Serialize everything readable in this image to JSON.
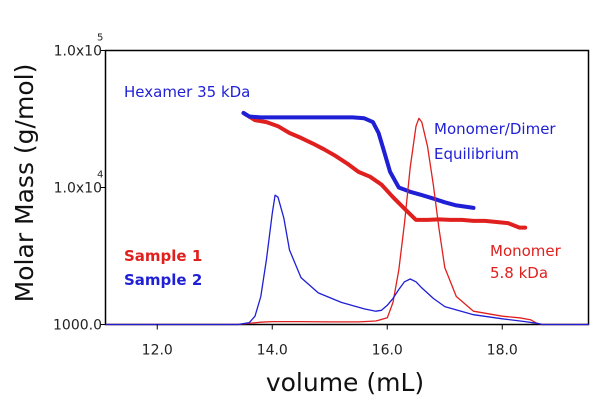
{
  "chart_data": {
    "type": "line",
    "xlabel": "volume (mL)",
    "ylabel": "Molar Mass (g/mol)",
    "xlim": [
      11.1,
      19.5
    ],
    "ylim": [
      1000,
      100000
    ],
    "y_scale": "log",
    "grid": false,
    "x_ticks": [
      {
        "value": 12,
        "label": "12.0"
      },
      {
        "value": 14,
        "label": "14.0"
      },
      {
        "value": 16,
        "label": "16.0"
      },
      {
        "value": 18,
        "label": "18.0"
      }
    ],
    "y_ticks": [
      {
        "value": 1000,
        "base": "1000.0",
        "exp": ""
      },
      {
        "value": 10000,
        "base": "1.0x10",
        "exp": "4"
      },
      {
        "value": 100000,
        "base": "1.0x10",
        "exp": "5"
      }
    ],
    "colors": {
      "sample1": "#e0201e",
      "sample2": "#1f1fd6",
      "axis": "#000000"
    },
    "legend": {
      "placement": "left",
      "entries": [
        {
          "label": "Sample 1",
          "color": "#e0201e"
        },
        {
          "label": "Sample 2",
          "color": "#1f1fd6"
        }
      ]
    },
    "annotations": [
      {
        "lines": [
          "Hexamer 35 kDa"
        ],
        "color": "#1f1fd6"
      },
      {
        "lines": [
          "Monomer/Dimer",
          "Equilibrium"
        ],
        "color": "#1f1fd6"
      },
      {
        "lines": [
          "Monomer",
          "5.8 kDa"
        ],
        "color": "#e0201e"
      }
    ],
    "series": [
      {
        "role": "molar-mass",
        "color": "#e0201e",
        "x": [
          13.5,
          13.7,
          13.9,
          14.1,
          14.3,
          14.5,
          14.7,
          14.9,
          15.1,
          15.3,
          15.5,
          15.7,
          15.9,
          16.1,
          16.3,
          16.5,
          16.7,
          16.9,
          17.1,
          17.3,
          17.5,
          17.7,
          17.9,
          18.1,
          18.3,
          18.4
        ],
        "y": [
          35000,
          31000,
          30000,
          28000,
          25000,
          23000,
          21000,
          19000,
          17000,
          15000,
          13000,
          12000,
          10500,
          8500,
          7000,
          5800,
          5800,
          5850,
          5800,
          5800,
          5700,
          5700,
          5600,
          5500,
          5100,
          5100
        ]
      },
      {
        "role": "molar-mass",
        "color": "#1f1fd6",
        "x": [
          13.5,
          13.6,
          13.8,
          14.0,
          14.2,
          14.6,
          15.0,
          15.4,
          15.6,
          15.75,
          15.85,
          15.95,
          16.05,
          16.2,
          16.4,
          16.6,
          16.8,
          17.0,
          17.2,
          17.4,
          17.5
        ],
        "y": [
          35000,
          33000,
          32500,
          32500,
          32500,
          32500,
          32500,
          32500,
          32000,
          30000,
          25000,
          18000,
          13000,
          10000,
          9300,
          8800,
          8300,
          7800,
          7400,
          7200,
          7100
        ]
      },
      {
        "role": "detector-trace",
        "color": "#e0201e",
        "x": [
          11.1,
          13.4,
          13.8,
          14.0,
          14.5,
          15.0,
          15.5,
          15.8,
          16.0,
          16.1,
          16.2,
          16.3,
          16.4,
          16.5,
          16.55,
          16.6,
          16.7,
          16.8,
          16.9,
          17.0,
          17.2,
          17.5,
          18.0,
          18.3,
          18.5,
          18.6,
          18.7,
          19.5
        ],
        "y": [
          1000,
          1000,
          1040,
          1050,
          1050,
          1045,
          1045,
          1060,
          1120,
          1450,
          2500,
          5500,
          14000,
          28000,
          32000,
          30000,
          20000,
          10500,
          5000,
          2600,
          1600,
          1250,
          1150,
          1120,
          1080,
          1020,
          1000,
          1000
        ]
      },
      {
        "role": "detector-trace",
        "color": "#1f1fd6",
        "x": [
          11.1,
          13.4,
          13.6,
          13.7,
          13.8,
          13.9,
          14.0,
          14.05,
          14.1,
          14.2,
          14.3,
          14.5,
          14.8,
          15.2,
          15.6,
          15.8,
          15.9,
          16.0,
          16.1,
          16.2,
          16.3,
          16.4,
          16.5,
          16.6,
          16.8,
          17.0,
          17.5,
          18.0,
          18.4,
          18.6,
          18.7,
          19.5
        ],
        "y": [
          1000,
          1000,
          1030,
          1150,
          1600,
          3000,
          6500,
          8800,
          8500,
          6000,
          3500,
          2200,
          1700,
          1450,
          1300,
          1250,
          1270,
          1380,
          1550,
          1800,
          2050,
          2150,
          2050,
          1850,
          1550,
          1350,
          1180,
          1100,
          1050,
          1020,
          1000,
          1000
        ]
      }
    ]
  }
}
